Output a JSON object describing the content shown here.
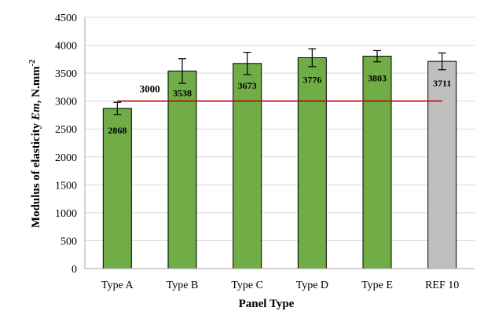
{
  "chart_data": {
    "type": "bar",
    "categories": [
      "Type A",
      "Type B",
      "Type C",
      "Type D",
      "Type E",
      "REF 10"
    ],
    "values": [
      2868,
      3538,
      3673,
      3776,
      3803,
      3711
    ],
    "data_labels": [
      "2868",
      "3538",
      "3673",
      "3776",
      "3803",
      "3711"
    ],
    "error_bars": [
      110,
      220,
      200,
      160,
      100,
      150
    ],
    "bar_colors": [
      "#70ad47",
      "#70ad47",
      "#70ad47",
      "#70ad47",
      "#70ad47",
      "#bfbfbf"
    ],
    "reference_line": {
      "value": 3000,
      "label": "3000",
      "color": "#cc0000"
    },
    "xlabel": "Panel Type",
    "ylabel_prefix": "Modulus of elasticity ",
    "ylabel_symbol": "Em",
    "ylabel_unit": ", N.mm",
    "ylabel_exponent": "-2",
    "ylim": [
      0,
      4500
    ],
    "yticks": [
      0,
      500,
      1000,
      1500,
      2000,
      2500,
      3000,
      3500,
      4000,
      4500
    ],
    "grid": true
  }
}
